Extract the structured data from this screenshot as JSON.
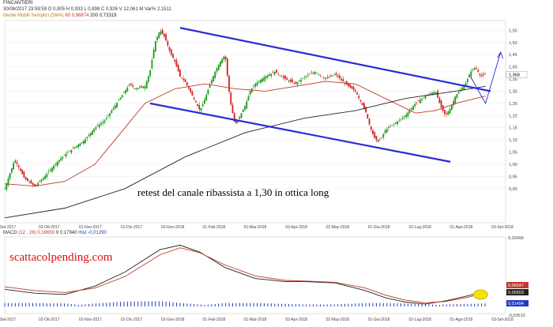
{
  "header": {
    "symbol": "FINCANTIERI",
    "date": "30/08/2017",
    "time": "23:59:59",
    "ohlc": [
      {
        "label": "O",
        "value": "0,905"
      },
      {
        "label": "H",
        "value": "0,933"
      },
      {
        "label": "L",
        "value": "0,898"
      },
      {
        "label": "C",
        "value": "0,926"
      },
      {
        "label": "V",
        "value": "12,061 M"
      },
      {
        "label": "Var%",
        "value": "2,1511"
      }
    ],
    "ma_label": "Medie Mobili Semplici (SMA)",
    "ma": [
      {
        "period": "60",
        "value": "0,96674",
        "color": "#c0392b"
      },
      {
        "period": "200",
        "value": "0,73319",
        "color": "#222222"
      }
    ]
  },
  "annotation": "retest del canale ribassista a 1,30 in ottica long",
  "watermark": "scattacolpending.com",
  "chart_data": [
    {
      "type": "candlestick",
      "title": "FINCANTIERI",
      "x_ticks": [
        "Set-2017",
        "02-Ott-2017",
        "01-Nov-2017",
        "01-Dic-2017",
        "02-Gen-2018",
        "01-Feb-2018",
        "01-Mar-2018",
        "03-Apr-2018",
        "02-May-2018",
        "01-Giu-2018",
        "02-Lug-2018",
        "01-Ago-2018",
        "03-Set-2018"
      ],
      "y_ticks": [
        "1,55",
        "1,50",
        "1,45",
        "1,40",
        "1,35",
        "1,30",
        "1,25",
        "1,20",
        "1,15",
        "1,10",
        "1,05",
        "1,00",
        "0,95",
        "0,90"
      ],
      "ylim": [
        0.76,
        1.59
      ],
      "last_price_label": "1,368",
      "price_path": [
        [
          0,
          0.9
        ],
        [
          1,
          0.96
        ],
        [
          2,
          1.02
        ],
        [
          3,
          0.98
        ],
        [
          4,
          0.94
        ],
        [
          6,
          0.91
        ],
        [
          7,
          0.93
        ],
        [
          8,
          0.95
        ],
        [
          10,
          1.0
        ],
        [
          12,
          1.04
        ],
        [
          14,
          1.07
        ],
        [
          16,
          1.1
        ],
        [
          18,
          1.15
        ],
        [
          20,
          1.18
        ],
        [
          22,
          1.24
        ],
        [
          24,
          1.3
        ],
        [
          25,
          1.33
        ],
        [
          26,
          1.31
        ],
        [
          28,
          1.32
        ],
        [
          29,
          1.38
        ],
        [
          30,
          1.5
        ],
        [
          31,
          1.55
        ],
        [
          32,
          1.52
        ],
        [
          33,
          1.46
        ],
        [
          34,
          1.42
        ],
        [
          35,
          1.36
        ],
        [
          36,
          1.34
        ],
        [
          37,
          1.3
        ],
        [
          38,
          1.26
        ],
        [
          39,
          1.22
        ],
        [
          40,
          1.27
        ],
        [
          41,
          1.33
        ],
        [
          42,
          1.38
        ],
        [
          43,
          1.42
        ],
        [
          44,
          1.45
        ],
        [
          45,
          1.26
        ],
        [
          46,
          1.16
        ],
        [
          47,
          1.2
        ],
        [
          48,
          1.24
        ],
        [
          49,
          1.3
        ],
        [
          50,
          1.33
        ],
        [
          52,
          1.36
        ],
        [
          54,
          1.38
        ],
        [
          56,
          1.35
        ],
        [
          58,
          1.33
        ],
        [
          60,
          1.36
        ],
        [
          62,
          1.38
        ],
        [
          64,
          1.35
        ],
        [
          66,
          1.37
        ],
        [
          68,
          1.33
        ],
        [
          70,
          1.3
        ],
        [
          72,
          1.22
        ],
        [
          73,
          1.15
        ],
        [
          74,
          1.1
        ],
        [
          75,
          1.1
        ],
        [
          76,
          1.14
        ],
        [
          78,
          1.17
        ],
        [
          80,
          1.2
        ],
        [
          82,
          1.25
        ],
        [
          84,
          1.28
        ],
        [
          86,
          1.3
        ],
        [
          87,
          1.24
        ],
        [
          88,
          1.2
        ],
        [
          89,
          1.23
        ],
        [
          90,
          1.28
        ],
        [
          92,
          1.33
        ],
        [
          93,
          1.38
        ],
        [
          94,
          1.4
        ],
        [
          95,
          1.36
        ],
        [
          96,
          1.37
        ]
      ],
      "sma60_path": [
        [
          0,
          0.92
        ],
        [
          6,
          0.91
        ],
        [
          12,
          0.93
        ],
        [
          18,
          1.0
        ],
        [
          24,
          1.15
        ],
        [
          28,
          1.25
        ],
        [
          34,
          1.31
        ],
        [
          40,
          1.33
        ],
        [
          46,
          1.31
        ],
        [
          52,
          1.3
        ],
        [
          58,
          1.32
        ],
        [
          64,
          1.34
        ],
        [
          70,
          1.33
        ],
        [
          76,
          1.27
        ],
        [
          82,
          1.21
        ],
        [
          86,
          1.22
        ],
        [
          90,
          1.25
        ],
        [
          96,
          1.28
        ]
      ],
      "sma200_path": [
        [
          0,
          0.78
        ],
        [
          12,
          0.82
        ],
        [
          24,
          0.9
        ],
        [
          36,
          1.03
        ],
        [
          48,
          1.13
        ],
        [
          60,
          1.19
        ],
        [
          70,
          1.22
        ],
        [
          80,
          1.27
        ],
        [
          90,
          1.3
        ],
        [
          96,
          1.32
        ]
      ],
      "channel_upper": [
        [
          35,
          1.56
        ],
        [
          97,
          1.3
        ]
      ],
      "channel_lower": [
        [
          29,
          1.25
        ],
        [
          89,
          1.01
        ]
      ],
      "projection_arrow": [
        [
          93,
          1.36
        ],
        [
          96,
          1.25
        ],
        [
          99,
          1.46
        ]
      ],
      "last_index": 96
    },
    {
      "type": "line",
      "title": "MACD",
      "legend": [
        {
          "name": "MACD",
          "color": "#222222"
        },
        {
          "name": "(12 , 26)",
          "value": "0,16650",
          "color": "#c0392b"
        },
        {
          "name": "9",
          "value": "0,17940",
          "color": "#222222"
        },
        {
          "name": "Hist",
          "value": "-0,01290",
          "color": "#1e3cc8"
        }
      ],
      "y_ticks_right": [
        "0,03496",
        "0,06547",
        "0,00503",
        "0,01494",
        "-0,03510"
      ],
      "x_ticks": [
        "Set-2017",
        "02-Ott-2017",
        "01-Nov-2017",
        "01-Dic-2017",
        "02-Gen-2018",
        "01-Feb-2018",
        "01-Mar-2018",
        "03-Apr-2018",
        "02-May-2018",
        "01-Giu-2018",
        "02-Lug-2018",
        "01-Ago-2018",
        "03-Set-2018"
      ],
      "macd_path": [
        [
          0,
          0.28
        ],
        [
          6,
          0.22
        ],
        [
          12,
          0.2
        ],
        [
          18,
          0.33
        ],
        [
          24,
          0.55
        ],
        [
          31,
          0.9
        ],
        [
          35,
          0.97
        ],
        [
          39,
          0.86
        ],
        [
          44,
          0.62
        ],
        [
          50,
          0.45
        ],
        [
          56,
          0.4
        ],
        [
          60,
          0.4
        ],
        [
          66,
          0.38
        ],
        [
          72,
          0.26
        ],
        [
          76,
          0.15
        ],
        [
          80,
          0.08
        ],
        [
          84,
          0.05
        ],
        [
          88,
          0.1
        ],
        [
          92,
          0.17
        ],
        [
          96,
          0.25
        ]
      ],
      "signal_path": [
        [
          0,
          0.32
        ],
        [
          6,
          0.26
        ],
        [
          12,
          0.23
        ],
        [
          18,
          0.3
        ],
        [
          24,
          0.48
        ],
        [
          31,
          0.82
        ],
        [
          35,
          0.93
        ],
        [
          39,
          0.85
        ],
        [
          44,
          0.66
        ],
        [
          50,
          0.49
        ],
        [
          56,
          0.42
        ],
        [
          60,
          0.41
        ],
        [
          66,
          0.39
        ],
        [
          72,
          0.3
        ],
        [
          76,
          0.19
        ],
        [
          80,
          0.11
        ],
        [
          84,
          0.07
        ],
        [
          88,
          0.09
        ],
        [
          92,
          0.15
        ],
        [
          96,
          0.22
        ]
      ]
    }
  ]
}
